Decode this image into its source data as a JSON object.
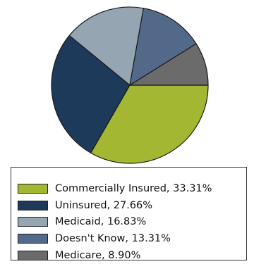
{
  "chart_data": {
    "type": "pie",
    "title": "",
    "slices": [
      {
        "label": "Commercially Insured, 33.31%",
        "value": 33.31,
        "color": "#a4b733"
      },
      {
        "label": "Uninsured, 27.66%",
        "value": 27.66,
        "color": "#1d3a5a"
      },
      {
        "label": "Medicaid, 16.83%",
        "value": 16.83,
        "color": "#96a5b2"
      },
      {
        "label": "Doesn't Know, 13.31%",
        "value": 13.31,
        "color": "#53698a"
      },
      {
        "label": "Medicare, 8.90%",
        "value": 8.9,
        "color": "#6b6b6b"
      }
    ],
    "legend_position": "bottom"
  }
}
